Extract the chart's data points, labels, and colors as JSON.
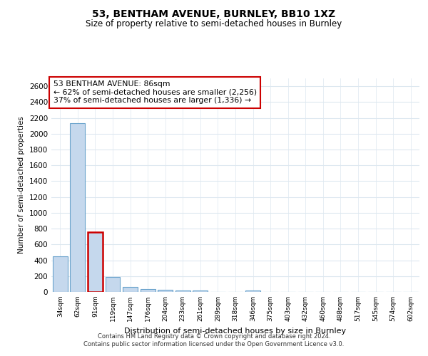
{
  "title": "53, BENTHAM AVENUE, BURNLEY, BB10 1XZ",
  "subtitle": "Size of property relative to semi-detached houses in Burnley",
  "xlabel": "Distribution of semi-detached houses by size in Burnley",
  "ylabel": "Number of semi-detached properties",
  "categories": [
    "34sqm",
    "62sqm",
    "91sqm",
    "119sqm",
    "147sqm",
    "176sqm",
    "204sqm",
    "233sqm",
    "261sqm",
    "289sqm",
    "318sqm",
    "346sqm",
    "375sqm",
    "403sqm",
    "432sqm",
    "460sqm",
    "488sqm",
    "517sqm",
    "545sqm",
    "574sqm",
    "602sqm"
  ],
  "values": [
    450,
    2130,
    760,
    185,
    60,
    40,
    28,
    18,
    18,
    0,
    0,
    20,
    0,
    0,
    0,
    0,
    0,
    0,
    0,
    0,
    0
  ],
  "bar_color": "#c5d8ed",
  "bar_edge_color": "#6aa3cc",
  "highlight_bar_index": 2,
  "highlight_bar_edge_color": "#cc0000",
  "ylim": [
    0,
    2700
  ],
  "yticks": [
    0,
    200,
    400,
    600,
    800,
    1000,
    1200,
    1400,
    1600,
    1800,
    2000,
    2200,
    2400,
    2600
  ],
  "annotation_box_text": "53 BENTHAM AVENUE: 86sqm\n← 62% of semi-detached houses are smaller (2,256)\n37% of semi-detached houses are larger (1,336) →",
  "annotation_box_color": "#ffffff",
  "annotation_box_edge_color": "#cc0000",
  "grid_color": "#dde8f0",
  "background_color": "#ffffff",
  "footer_line1": "Contains HM Land Registry data © Crown copyright and database right 2024.",
  "footer_line2": "Contains public sector information licensed under the Open Government Licence v3.0."
}
